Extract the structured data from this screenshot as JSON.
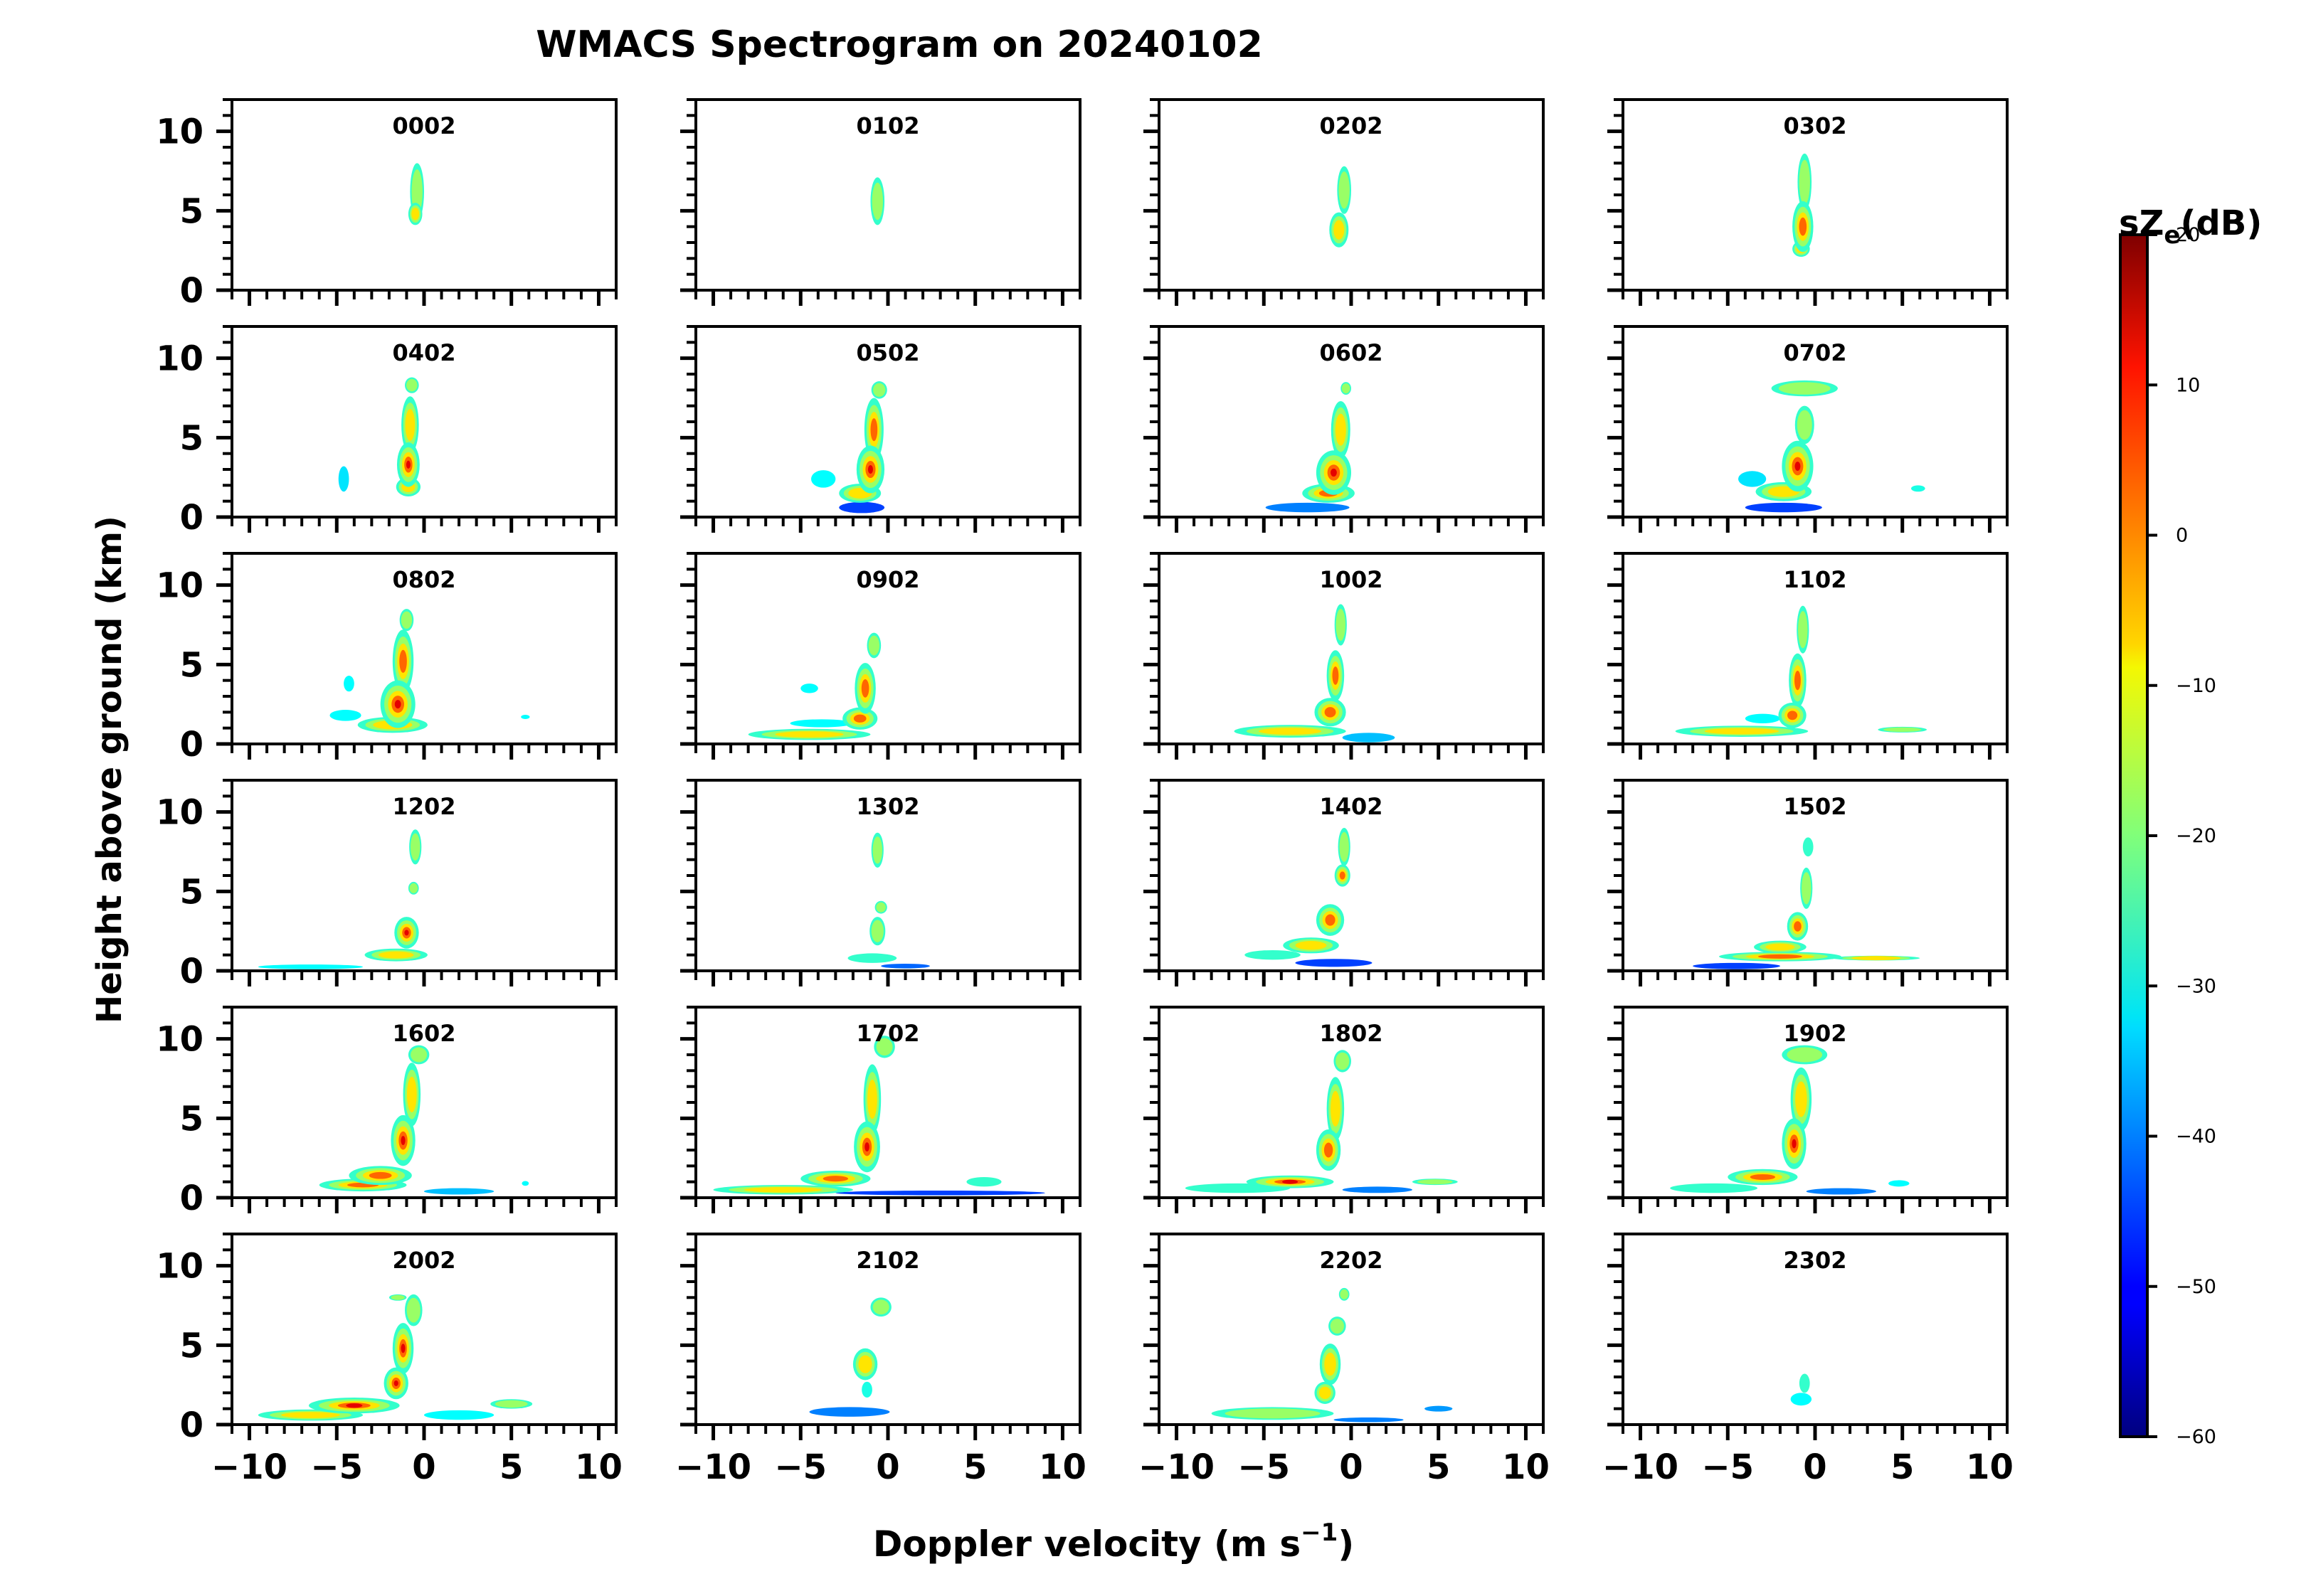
{
  "chart_data": {
    "type": "heatmap",
    "title": "WMACS Spectrogram on 20240102",
    "xlabel": "Doppler velocity (m s",
    "xlabel_sup": "−1",
    "xlabel_end": ")",
    "ylabel": "Height above ground (km)",
    "xlim": [
      -11,
      11
    ],
    "ylim": [
      0,
      12
    ],
    "x_ticks": [
      -10,
      -5,
      0,
      5,
      10
    ],
    "x_tick_labels": [
      "−10",
      "−5",
      "0",
      "5",
      "10"
    ],
    "y_ticks": [
      0,
      5,
      10
    ],
    "y_tick_labels": [
      "0",
      "5",
      "10"
    ],
    "grid": false,
    "colorbar": {
      "label_main": "sZ",
      "label_sub": "e",
      "label_unit": "(dB)",
      "vmin": -60,
      "vmax": 20,
      "ticks": [
        20,
        10,
        0,
        -10,
        -20,
        -30,
        -40,
        -50,
        -60
      ],
      "tick_labels": [
        "20",
        "10",
        "0",
        "−10",
        "−20",
        "−30",
        "−40",
        "−50",
        "−60"
      ],
      "colormap": "jet"
    },
    "panels": [
      {
        "label": "0002",
        "blobs": [
          [
            -0.4,
            6.2,
            0.4,
            1.8,
            -14
          ],
          [
            -0.5,
            4.8,
            0.4,
            0.7,
            -8
          ]
        ]
      },
      {
        "label": "0102",
        "blobs": [
          [
            -0.6,
            5.6,
            0.4,
            1.5,
            -18
          ]
        ]
      },
      {
        "label": "0202",
        "blobs": [
          [
            -0.4,
            6.3,
            0.4,
            1.5,
            -18
          ],
          [
            -0.7,
            3.8,
            0.55,
            1.1,
            -2
          ]
        ]
      },
      {
        "label": "0302",
        "blobs": [
          [
            -0.6,
            6.8,
            0.4,
            1.8,
            -18
          ],
          [
            -0.7,
            4.0,
            0.6,
            1.6,
            8
          ],
          [
            -0.8,
            2.6,
            0.5,
            0.5,
            -5
          ]
        ]
      },
      {
        "label": "0402",
        "blobs": [
          [
            -0.7,
            8.3,
            0.4,
            0.5,
            -18
          ],
          [
            -0.8,
            5.8,
            0.5,
            1.8,
            -5
          ],
          [
            -0.9,
            3.3,
            0.65,
            1.4,
            12
          ],
          [
            -0.9,
            1.9,
            0.7,
            0.6,
            0
          ],
          [
            -4.6,
            2.4,
            0.3,
            0.8,
            -32
          ]
        ]
      },
      {
        "label": "0502",
        "blobs": [
          [
            -0.5,
            8.0,
            0.45,
            0.55,
            -18
          ],
          [
            -0.8,
            5.5,
            0.55,
            2.0,
            5
          ],
          [
            -1.0,
            3.0,
            0.8,
            1.5,
            15
          ],
          [
            -1.6,
            1.5,
            1.2,
            0.6,
            0
          ],
          [
            -1.5,
            0.6,
            1.3,
            0.35,
            -45
          ],
          [
            -3.7,
            2.4,
            0.7,
            0.55,
            -30
          ]
        ]
      },
      {
        "label": "0602",
        "blobs": [
          [
            -0.3,
            8.1,
            0.3,
            0.4,
            -18
          ],
          [
            -0.6,
            5.5,
            0.55,
            1.8,
            -5
          ],
          [
            -1.0,
            2.8,
            1.0,
            1.4,
            15
          ],
          [
            -1.3,
            1.5,
            1.5,
            0.6,
            2
          ],
          [
            -2.5,
            0.6,
            2.4,
            0.3,
            -40
          ]
        ]
      },
      {
        "label": "0702",
        "blobs": [
          [
            -0.6,
            8.1,
            1.9,
            0.5,
            -18
          ],
          [
            -0.6,
            5.8,
            0.55,
            1.2,
            -10
          ],
          [
            -1.0,
            3.2,
            0.9,
            1.6,
            15
          ],
          [
            -1.8,
            1.6,
            1.6,
            0.6,
            -5
          ],
          [
            -3.6,
            2.4,
            0.8,
            0.5,
            -32
          ],
          [
            -1.8,
            0.6,
            2.2,
            0.3,
            -45
          ],
          [
            5.9,
            1.8,
            0.4,
            0.2,
            -28
          ]
        ]
      },
      {
        "label": "0802",
        "blobs": [
          [
            -1.0,
            7.8,
            0.4,
            0.7,
            -14
          ],
          [
            -1.2,
            5.2,
            0.6,
            2.0,
            5
          ],
          [
            -1.5,
            2.5,
            1.0,
            1.5,
            15
          ],
          [
            -1.8,
            1.2,
            2.0,
            0.5,
            0
          ],
          [
            -4.5,
            1.8,
            0.9,
            0.35,
            -30
          ],
          [
            -4.3,
            3.8,
            0.3,
            0.5,
            -30
          ],
          [
            5.8,
            1.7,
            0.25,
            0.12,
            -30
          ]
        ]
      },
      {
        "label": "0902",
        "blobs": [
          [
            -0.8,
            6.2,
            0.4,
            0.8,
            -10
          ],
          [
            -1.3,
            3.5,
            0.6,
            1.6,
            10
          ],
          [
            -1.6,
            1.6,
            1.0,
            0.7,
            5
          ],
          [
            -4.5,
            0.6,
            3.5,
            0.35,
            -5
          ],
          [
            -3.8,
            1.3,
            1.8,
            0.25,
            -30
          ],
          [
            -4.5,
            3.5,
            0.5,
            0.3,
            -30
          ]
        ]
      },
      {
        "label": "1002",
        "blobs": [
          [
            -0.6,
            7.5,
            0.35,
            1.3,
            -18
          ],
          [
            -0.9,
            4.3,
            0.5,
            1.6,
            2
          ],
          [
            -1.2,
            2.0,
            0.9,
            0.9,
            8
          ],
          [
            -3.5,
            0.8,
            3.2,
            0.4,
            -8
          ],
          [
            1.0,
            0.4,
            1.5,
            0.3,
            -35
          ]
        ]
      },
      {
        "label": "1102",
        "blobs": [
          [
            -0.7,
            7.2,
            0.35,
            1.5,
            -18
          ],
          [
            -1.0,
            4.0,
            0.5,
            1.7,
            5
          ],
          [
            -1.3,
            1.8,
            0.8,
            0.8,
            10
          ],
          [
            -4.2,
            0.8,
            3.8,
            0.35,
            -5
          ],
          [
            5.0,
            0.9,
            1.4,
            0.18,
            -12
          ],
          [
            -3.0,
            1.6,
            1.0,
            0.3,
            -30
          ]
        ]
      },
      {
        "label": "1202",
        "blobs": [
          [
            -0.5,
            7.8,
            0.35,
            1.1,
            -18
          ],
          [
            -0.6,
            5.2,
            0.3,
            0.4,
            -10
          ],
          [
            -1.0,
            2.4,
            0.7,
            1.0,
            12
          ],
          [
            -1.6,
            1.0,
            1.8,
            0.4,
            -5
          ],
          [
            -6.5,
            0.25,
            3.0,
            0.15,
            -30
          ]
        ]
      },
      {
        "label": "1302",
        "blobs": [
          [
            -0.6,
            7.6,
            0.35,
            1.1,
            -18
          ],
          [
            -0.4,
            4.0,
            0.35,
            0.4,
            -10
          ],
          [
            -0.6,
            2.5,
            0.45,
            0.9,
            -10
          ],
          [
            -0.9,
            0.8,
            1.4,
            0.3,
            -25
          ],
          [
            1.0,
            0.3,
            1.4,
            0.15,
            -42
          ]
        ]
      },
      {
        "label": "1402",
        "blobs": [
          [
            -0.4,
            7.8,
            0.35,
            1.2,
            -18
          ],
          [
            -0.5,
            6.0,
            0.45,
            0.7,
            10
          ],
          [
            -1.2,
            3.2,
            0.8,
            1.0,
            8
          ],
          [
            -2.3,
            1.6,
            1.6,
            0.5,
            -5
          ],
          [
            -4.5,
            1.0,
            1.6,
            0.3,
            -20
          ],
          [
            -1.0,
            0.5,
            2.2,
            0.25,
            -45
          ]
        ]
      },
      {
        "label": "1502",
        "blobs": [
          [
            -0.4,
            7.8,
            0.3,
            0.6,
            -20
          ],
          [
            -0.5,
            5.2,
            0.35,
            1.3,
            -12
          ],
          [
            -1.0,
            2.8,
            0.6,
            0.9,
            10
          ],
          [
            -2.0,
            1.5,
            1.5,
            0.4,
            -5
          ],
          [
            -2.0,
            0.9,
            3.5,
            0.3,
            5
          ],
          [
            3.5,
            0.8,
            2.5,
            0.15,
            -8
          ],
          [
            -4.5,
            0.3,
            2.5,
            0.2,
            -45
          ]
        ]
      },
      {
        "label": "1602",
        "blobs": [
          [
            -0.3,
            9.0,
            0.6,
            0.6,
            -18
          ],
          [
            -0.7,
            6.5,
            0.5,
            2.0,
            0
          ],
          [
            -1.2,
            3.6,
            0.7,
            1.6,
            12
          ],
          [
            -2.5,
            1.4,
            1.8,
            0.6,
            10
          ],
          [
            -3.5,
            0.8,
            2.5,
            0.4,
            5
          ],
          [
            2.0,
            0.4,
            2.0,
            0.2,
            -35
          ],
          [
            5.8,
            0.9,
            0.2,
            0.15,
            -30
          ]
        ]
      },
      {
        "label": "1702",
        "blobs": [
          [
            -0.2,
            9.5,
            0.6,
            0.7,
            -18
          ],
          [
            -0.9,
            6.2,
            0.5,
            2.2,
            0
          ],
          [
            -1.2,
            3.2,
            0.75,
            1.6,
            12
          ],
          [
            -3.0,
            1.2,
            2.0,
            0.5,
            5
          ],
          [
            -6.0,
            0.5,
            4.0,
            0.3,
            -5
          ],
          [
            5.5,
            1.0,
            1.0,
            0.3,
            -25
          ],
          [
            3.0,
            0.3,
            6.0,
            0.15,
            -45
          ]
        ]
      },
      {
        "label": "1802",
        "blobs": [
          [
            -0.5,
            8.6,
            0.5,
            0.7,
            -18
          ],
          [
            -0.9,
            5.6,
            0.5,
            2.0,
            0
          ],
          [
            -1.3,
            3.0,
            0.7,
            1.3,
            10
          ],
          [
            -3.5,
            1.0,
            2.5,
            0.4,
            12
          ],
          [
            -6.5,
            0.6,
            3.0,
            0.3,
            -25
          ],
          [
            4.8,
            1.0,
            1.3,
            0.2,
            -12
          ],
          [
            1.5,
            0.5,
            2.0,
            0.2,
            -40
          ]
        ]
      },
      {
        "label": "1902",
        "blobs": [
          [
            -0.6,
            9.0,
            1.3,
            0.6,
            -18
          ],
          [
            -0.8,
            6.2,
            0.6,
            2.0,
            0
          ],
          [
            -1.2,
            3.4,
            0.7,
            1.6,
            12
          ],
          [
            -3.0,
            1.3,
            2.0,
            0.5,
            5
          ],
          [
            -5.8,
            0.6,
            2.5,
            0.3,
            -20
          ],
          [
            4.8,
            0.9,
            0.6,
            0.2,
            -30
          ],
          [
            1.5,
            0.4,
            2.0,
            0.2,
            -40
          ]
        ]
      },
      {
        "label": "2002",
        "blobs": [
          [
            -0.6,
            7.2,
            0.5,
            1.0,
            -12
          ],
          [
            -1.2,
            4.8,
            0.6,
            1.6,
            12
          ],
          [
            -1.6,
            2.6,
            0.7,
            1.0,
            12
          ],
          [
            -4.0,
            1.2,
            2.6,
            0.5,
            15
          ],
          [
            -6.5,
            0.6,
            3.0,
            0.35,
            -5
          ],
          [
            5.0,
            1.3,
            1.2,
            0.3,
            -15
          ],
          [
            2.0,
            0.6,
            2.0,
            0.3,
            -30
          ],
          [
            -1.5,
            8.0,
            0.5,
            0.2,
            -18
          ]
        ]
      },
      {
        "label": "2102",
        "blobs": [
          [
            -0.4,
            7.4,
            0.6,
            0.6,
            -18
          ],
          [
            -1.3,
            3.8,
            0.7,
            1.0,
            0
          ],
          [
            -1.2,
            2.2,
            0.3,
            0.5,
            -28
          ],
          [
            -2.2,
            0.8,
            2.3,
            0.3,
            -40
          ]
        ]
      },
      {
        "label": "2202",
        "blobs": [
          [
            -0.4,
            8.2,
            0.3,
            0.4,
            -18
          ],
          [
            -0.8,
            6.2,
            0.5,
            0.6,
            -15
          ],
          [
            -1.2,
            3.8,
            0.6,
            1.3,
            -8
          ],
          [
            -1.5,
            2.0,
            0.6,
            0.7,
            -5
          ],
          [
            -4.5,
            0.7,
            3.5,
            0.4,
            -15
          ],
          [
            5.0,
            1.0,
            0.8,
            0.18,
            -38
          ],
          [
            1.0,
            0.3,
            2.0,
            0.15,
            -40
          ]
        ]
      },
      {
        "label": "2302",
        "blobs": [
          [
            -0.6,
            2.6,
            0.3,
            0.6,
            -20
          ],
          [
            -0.8,
            1.6,
            0.6,
            0.4,
            -30
          ]
        ]
      }
    ]
  }
}
